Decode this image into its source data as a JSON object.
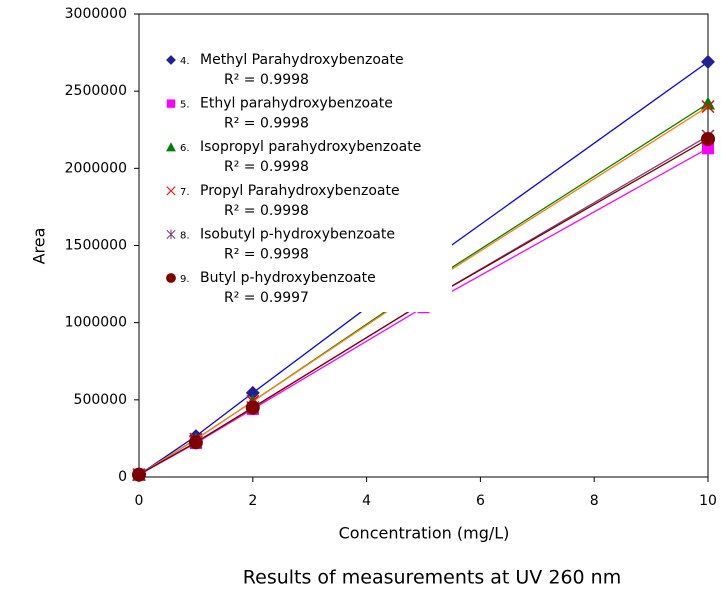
{
  "chart_data": {
    "type": "line",
    "y_label": "Area",
    "x_label": "Concentration (mg/L)",
    "caption": "Results of measurements  at UV 260 nm",
    "xlim": [
      0,
      10
    ],
    "xticks": [
      0,
      2,
      4,
      6,
      8,
      10
    ],
    "ylim": [
      0,
      3000000
    ],
    "yticks": [
      0,
      500000,
      1000000,
      1500000,
      2000000,
      2500000,
      3000000
    ],
    "x": [
      0,
      1,
      2,
      5,
      10
    ],
    "series": [
      {
        "number": "4.",
        "name": "Methyl Parahydroxybenzoate",
        "r2": "R² = 0.9998",
        "color": "#1f1f9a",
        "line_color": "#0000ff",
        "marker": "diamond",
        "values": [
          15000,
          265000,
          545000,
          1372000,
          2690000
        ]
      },
      {
        "number": "5.",
        "name": "Ethyl parahydroxybenzoate",
        "r2": "R² = 0.9998",
        "color": "#ff00ff",
        "line_color": "#ff00ff",
        "marker": "square",
        "values": [
          15000,
          220000,
          440000,
          1100000,
          2130000
        ]
      },
      {
        "number": "6.",
        "name": " Isopropyl parahydroxybenzoate",
        "r2": "R² = 0.9998",
        "color": "#008000",
        "line_color": "#008000",
        "marker": "triangle",
        "values": [
          15000,
          245000,
          490000,
          1240000,
          2420000
        ]
      },
      {
        "number": "7.",
        "name": "Propyl Parahydroxybenzoate",
        "r2": "R² = 0.9998",
        "color": "#ff0000",
        "line_color": "#ff8000",
        "marker": "x",
        "values": [
          15000,
          245000,
          490000,
          1230000,
          2400000
        ]
      },
      {
        "number": "8.",
        "name": "Isobutyl p-hydroxybenzoate",
        "r2": "R² = 0.9998",
        "color": "#7f3f7f",
        "line_color": "#7f3f7f",
        "marker": "star",
        "values": [
          15000,
          225000,
          450000,
          1130000,
          2210000
        ]
      },
      {
        "number": "9.",
        "name": "Butyl p-hydroxybenzoate",
        "r2": "R² = 0.9997",
        "color": "#800000",
        "line_color": "#800000",
        "marker": "circle",
        "values": [
          15000,
          225000,
          450000,
          1130000,
          2190000
        ]
      }
    ]
  }
}
